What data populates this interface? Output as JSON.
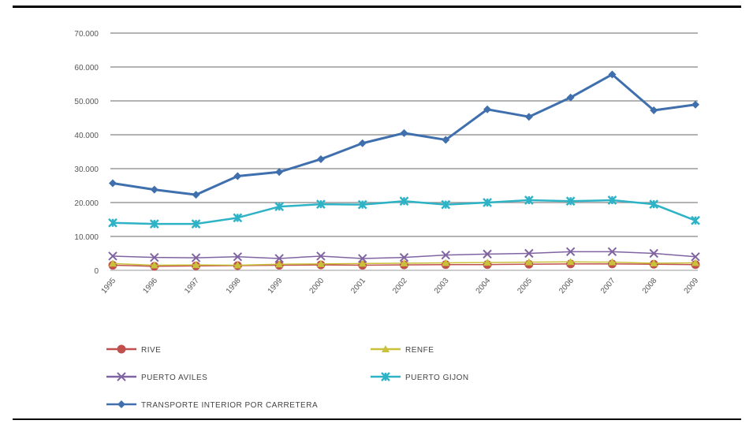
{
  "chart_data": {
    "type": "line",
    "x": [
      "1995",
      "1996",
      "1997",
      "1998",
      "1999",
      "2000",
      "2001",
      "2002",
      "2003",
      "2004",
      "2005",
      "2006",
      "2007",
      "2008",
      "2009"
    ],
    "ylim": [
      0,
      70000
    ],
    "yticks": [
      "0",
      "10.000",
      "20.000",
      "30.000",
      "40.000",
      "50.000",
      "60.000",
      "70.000"
    ],
    "grid": true,
    "legend_position": "bottom",
    "series": [
      {
        "name": "RIVE",
        "color": "#c0504d",
        "marker": "circle",
        "values": [
          1500,
          1200,
          1300,
          1400,
          1500,
          1600,
          1500,
          1600,
          1700,
          1700,
          1800,
          1900,
          1900,
          1800,
          1700
        ]
      },
      {
        "name": "RENFE",
        "color": "#c9c13a",
        "marker": "triangle",
        "values": [
          2000,
          1500,
          1600,
          1500,
          1800,
          1900,
          2000,
          2100,
          2200,
          2300,
          2400,
          2500,
          2400,
          2100,
          2200
        ]
      },
      {
        "name": "PUERTO AVILES",
        "color": "#8064a2",
        "marker": "x",
        "values": [
          4200,
          3800,
          3700,
          4000,
          3500,
          4200,
          3500,
          3800,
          4500,
          4800,
          5000,
          5500,
          5500,
          5000,
          4000
        ]
      },
      {
        "name": "PUERTO GIJON",
        "color": "#2eb3c6",
        "marker": "star",
        "values": [
          14000,
          13700,
          13700,
          15500,
          18800,
          19500,
          19400,
          20400,
          19400,
          20000,
          20700,
          20400,
          20700,
          19500,
          14700
        ]
      },
      {
        "name": "TRANSPORTE INTERIOR POR CARRETERA",
        "color": "#3f6fad",
        "marker": "diamond",
        "values": [
          25700,
          23800,
          22300,
          27800,
          29000,
          32800,
          37500,
          40500,
          38500,
          47500,
          45300,
          51000,
          57800,
          47200,
          48900
        ]
      }
    ]
  }
}
